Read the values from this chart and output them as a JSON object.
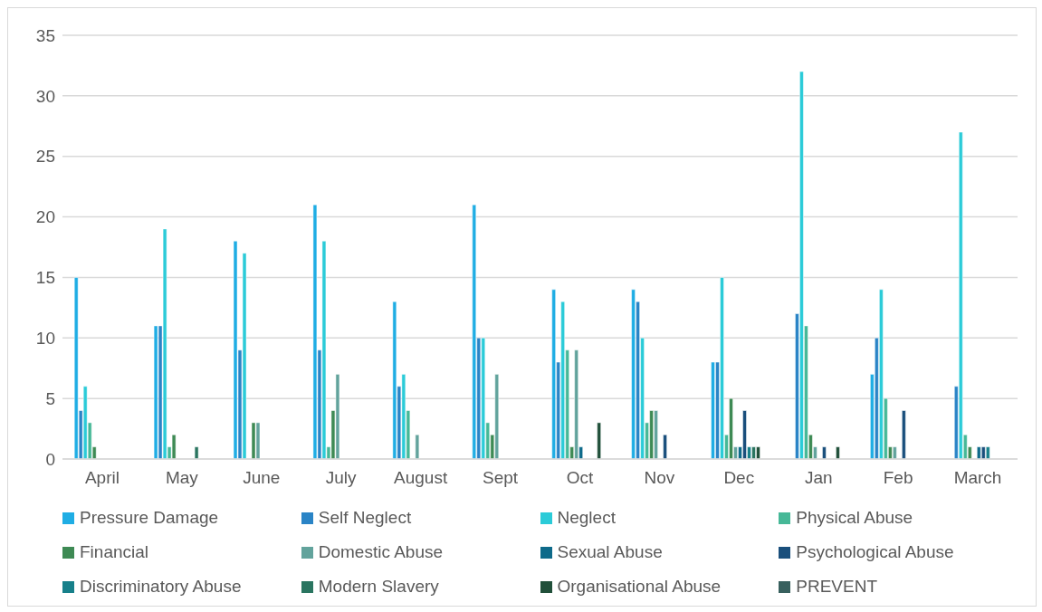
{
  "chart_data": {
    "type": "bar",
    "categories": [
      "April",
      "May",
      "June",
      "July",
      "August",
      "Sept",
      "Oct",
      "Nov",
      "Dec",
      "Jan",
      "Feb",
      "March"
    ],
    "series": [
      {
        "name": "Pressure Damage",
        "color": "#1fade4",
        "values": [
          15,
          11,
          18,
          21,
          13,
          21,
          14,
          14,
          8,
          0,
          7,
          0
        ]
      },
      {
        "name": "Self Neglect",
        "color": "#2a84c6",
        "values": [
          4,
          11,
          9,
          9,
          6,
          10,
          8,
          13,
          8,
          12,
          10,
          6
        ]
      },
      {
        "name": "Neglect",
        "color": "#2bcbd8",
        "values": [
          6,
          19,
          17,
          18,
          7,
          10,
          13,
          10,
          15,
          32,
          14,
          27
        ]
      },
      {
        "name": "Physical Abuse",
        "color": "#46b897",
        "values": [
          3,
          1,
          0,
          1,
          4,
          3,
          9,
          3,
          2,
          11,
          5,
          2
        ]
      },
      {
        "name": "Financial",
        "color": "#3e8a54",
        "values": [
          1,
          2,
          3,
          4,
          0,
          2,
          1,
          4,
          5,
          2,
          1,
          1
        ]
      },
      {
        "name": "Domestic Abuse",
        "color": "#62a39c",
        "values": [
          0,
          0,
          3,
          7,
          2,
          7,
          9,
          4,
          1,
          1,
          1,
          0
        ]
      },
      {
        "name": "Sexual Abuse",
        "color": "#0e6a8a",
        "values": [
          0,
          0,
          0,
          0,
          0,
          0,
          1,
          0,
          1,
          0,
          0,
          1
        ]
      },
      {
        "name": "Psychological Abuse",
        "color": "#1a4f7c",
        "values": [
          0,
          0,
          0,
          0,
          0,
          0,
          0,
          2,
          4,
          1,
          4,
          1
        ]
      },
      {
        "name": "Discriminatory Abuse",
        "color": "#17808a",
        "values": [
          0,
          0,
          0,
          0,
          0,
          0,
          0,
          0,
          1,
          0,
          0,
          1
        ]
      },
      {
        "name": "Modern Slavery",
        "color": "#2a7560",
        "values": [
          0,
          1,
          0,
          0,
          0,
          0,
          0,
          0,
          1,
          0,
          0,
          0
        ]
      },
      {
        "name": "Organisational Abuse",
        "color": "#21503a",
        "values": [
          0,
          0,
          0,
          0,
          0,
          0,
          3,
          0,
          1,
          1,
          0,
          0
        ]
      },
      {
        "name": "PREVENT",
        "color": "#38605e",
        "values": [
          0,
          0,
          0,
          0,
          0,
          0,
          0,
          0,
          0,
          0,
          0,
          0
        ]
      }
    ],
    "ylim": [
      0,
      35
    ],
    "yticks": [
      0,
      5,
      10,
      15,
      20,
      25,
      30,
      35
    ],
    "grid": "y",
    "legend": "bottom"
  }
}
